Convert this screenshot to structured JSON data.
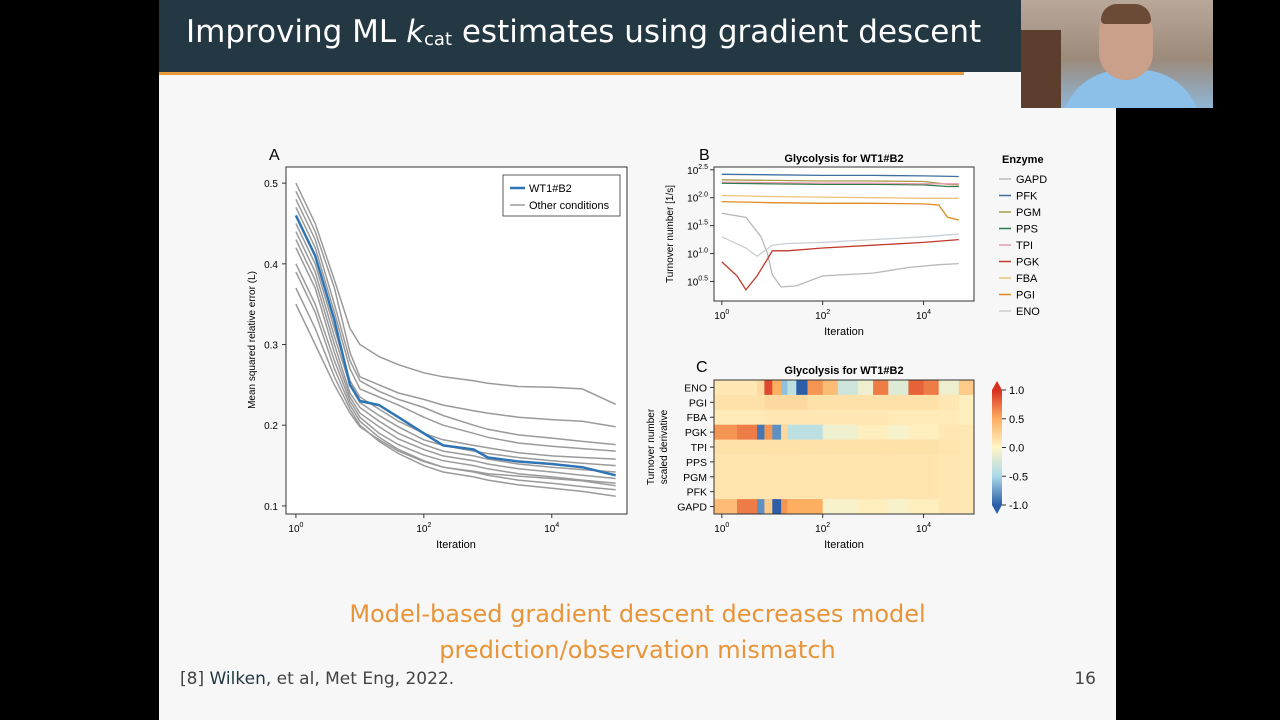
{
  "slide": {
    "title_pre": "Improving ML ",
    "title_k": "k",
    "title_sub": "cat",
    "title_post": " estimates using gradient descent",
    "tagline_line1": "Model-based gradient descent decreases model",
    "tagline_line2": "prediction/observation mismatch",
    "citation_ref": "[8] ",
    "citation_author": "Wilken",
    "citation_rest": ", et al, Met Eng, 2022.",
    "page_number": "16"
  },
  "panels": {
    "A": {
      "letter": "A",
      "xlabel": "Iteration",
      "ylabel": "Mean squared relative error (L)",
      "yticks": [
        "0.5",
        "0.4",
        "0.3",
        "0.2",
        "0.1"
      ],
      "xticks": [
        {
          "base": "10",
          "exp": "0"
        },
        {
          "base": "10",
          "exp": "2"
        },
        {
          "base": "10",
          "exp": "4"
        }
      ],
      "legend": [
        "WT1#B2",
        "Other conditions"
      ]
    },
    "B": {
      "letter": "B",
      "title": "Glycolysis for WT1#B2",
      "xlabel": "Iteration",
      "ylabel": "Turnover number [1/s]",
      "yticks": [
        {
          "base": "10",
          "exp": "2.5"
        },
        {
          "base": "10",
          "exp": "2.0"
        },
        {
          "base": "10",
          "exp": "1.5"
        },
        {
          "base": "10",
          "exp": "1.0"
        },
        {
          "base": "10",
          "exp": "0.5"
        }
      ],
      "xticks": [
        {
          "base": "10",
          "exp": "0"
        },
        {
          "base": "10",
          "exp": "2"
        },
        {
          "base": "10",
          "exp": "4"
        }
      ],
      "legend_title": "Enzyme",
      "legend": [
        "GAPD",
        "PFK",
        "PGM",
        "PPS",
        "TPI",
        "PGK",
        "FBA",
        "PGI",
        "ENO"
      ]
    },
    "C": {
      "letter": "C",
      "title": "Glycolysis for WT1#B2",
      "xlabel": "Iteration",
      "ylabel_line1": "Turnover number",
      "ylabel_line2": "scaled derivative",
      "rows": [
        "ENO",
        "PGI",
        "FBA",
        "PGK",
        "TPI",
        "PPS",
        "PGM",
        "PFK",
        "GAPD"
      ],
      "xticks": [
        {
          "base": "10",
          "exp": "0"
        },
        {
          "base": "10",
          "exp": "2"
        },
        {
          "base": "10",
          "exp": "4"
        }
      ],
      "colorbar_ticks": [
        "1.0",
        "0.5",
        "0.0",
        "-0.5",
        "-1.0"
      ]
    }
  },
  "chart_data": [
    {
      "type": "line",
      "panel": "A",
      "xscale": "log",
      "xlim": [
        0.7,
        150000
      ],
      "ylim": [
        0.09,
        0.52
      ],
      "xlabel": "Iteration",
      "ylabel": "Mean squared relative error (L)",
      "legend_position": "top-right",
      "colors": {
        "highlight": "#2f74b5",
        "other": "#9a9a9a"
      },
      "series": [
        {
          "name": "WT1#B2",
          "x": [
            1,
            2,
            4,
            7,
            10,
            20,
            40,
            100,
            200,
            600,
            1000,
            3000,
            10000,
            30000,
            100000
          ],
          "y": [
            0.46,
            0.41,
            0.33,
            0.25,
            0.23,
            0.225,
            0.21,
            0.19,
            0.175,
            0.17,
            0.16,
            0.155,
            0.152,
            0.148,
            0.138
          ]
        },
        {
          "name": "Other conditions",
          "x": [
            1,
            2,
            4,
            7,
            10,
            20,
            40,
            100,
            200,
            600,
            1000,
            3000,
            10000,
            30000,
            100000
          ],
          "y": [
            0.5,
            0.45,
            0.38,
            0.32,
            0.3,
            0.285,
            0.275,
            0.265,
            0.26,
            0.255,
            0.252,
            0.248,
            0.247,
            0.245,
            0.226
          ]
        },
        {
          "name": "Other conditions",
          "x": [
            1,
            2,
            4,
            7,
            10,
            20,
            40,
            100,
            200,
            600,
            1000,
            3000,
            10000,
            30000,
            100000
          ],
          "y": [
            0.49,
            0.44,
            0.37,
            0.29,
            0.26,
            0.25,
            0.24,
            0.232,
            0.225,
            0.218,
            0.215,
            0.21,
            0.207,
            0.205,
            0.198
          ]
        },
        {
          "name": "Other conditions",
          "x": [
            1,
            2,
            4,
            7,
            10,
            20,
            40,
            100,
            200,
            600,
            1000,
            3000,
            10000,
            30000,
            100000
          ],
          "y": [
            0.47,
            0.42,
            0.34,
            0.27,
            0.245,
            0.235,
            0.225,
            0.21,
            0.2,
            0.19,
            0.185,
            0.178,
            0.174,
            0.171,
            0.168
          ]
        },
        {
          "name": "Other conditions",
          "x": [
            1,
            2,
            4,
            7,
            10,
            20,
            40,
            100,
            200,
            600,
            1000,
            3000,
            10000,
            30000,
            100000
          ],
          "y": [
            0.45,
            0.4,
            0.32,
            0.255,
            0.235,
            0.22,
            0.205,
            0.19,
            0.182,
            0.175,
            0.172,
            0.166,
            0.162,
            0.16,
            0.158
          ]
        },
        {
          "name": "Other conditions",
          "x": [
            1,
            2,
            4,
            7,
            10,
            20,
            40,
            100,
            200,
            600,
            1000,
            3000,
            10000,
            30000,
            100000
          ],
          "y": [
            0.44,
            0.39,
            0.31,
            0.25,
            0.228,
            0.212,
            0.198,
            0.182,
            0.175,
            0.168,
            0.165,
            0.16,
            0.156,
            0.153,
            0.15
          ]
        },
        {
          "name": "Other conditions",
          "x": [
            1,
            2,
            4,
            7,
            10,
            20,
            40,
            100,
            200,
            600,
            1000,
            3000,
            10000,
            30000,
            100000
          ],
          "y": [
            0.43,
            0.38,
            0.3,
            0.24,
            0.222,
            0.205,
            0.19,
            0.176,
            0.168,
            0.162,
            0.158,
            0.152,
            0.148,
            0.145,
            0.142
          ]
        },
        {
          "name": "Other conditions",
          "x": [
            1,
            2,
            4,
            7,
            10,
            20,
            40,
            100,
            200,
            600,
            1000,
            3000,
            10000,
            30000,
            100000
          ],
          "y": [
            0.42,
            0.37,
            0.29,
            0.235,
            0.215,
            0.198,
            0.183,
            0.17,
            0.162,
            0.156,
            0.152,
            0.146,
            0.142,
            0.138,
            0.134
          ]
        },
        {
          "name": "Other conditions",
          "x": [
            1,
            2,
            4,
            7,
            10,
            20,
            40,
            100,
            200,
            600,
            1000,
            3000,
            10000,
            30000,
            100000
          ],
          "y": [
            0.4,
            0.35,
            0.28,
            0.23,
            0.21,
            0.19,
            0.176,
            0.163,
            0.156,
            0.15,
            0.146,
            0.14,
            0.136,
            0.132,
            0.128
          ]
        },
        {
          "name": "Other conditions",
          "x": [
            1,
            2,
            4,
            7,
            10,
            20,
            40,
            100,
            200,
            600,
            1000,
            3000,
            10000,
            30000,
            100000
          ],
          "y": [
            0.39,
            0.34,
            0.27,
            0.225,
            0.205,
            0.185,
            0.17,
            0.156,
            0.148,
            0.142,
            0.138,
            0.132,
            0.128,
            0.124,
            0.12
          ]
        },
        {
          "name": "Other conditions",
          "x": [
            1,
            2,
            4,
            7,
            10,
            20,
            40,
            100,
            200,
            600,
            1000,
            3000,
            10000,
            30000,
            100000
          ],
          "y": [
            0.37,
            0.32,
            0.26,
            0.22,
            0.2,
            0.18,
            0.165,
            0.15,
            0.142,
            0.136,
            0.132,
            0.126,
            0.122,
            0.118,
            0.112
          ]
        },
        {
          "name": "Other conditions",
          "x": [
            1,
            2,
            4,
            7,
            10,
            20,
            40,
            100,
            200,
            600,
            1000,
            3000,
            10000,
            30000,
            100000
          ],
          "y": [
            0.35,
            0.3,
            0.25,
            0.215,
            0.198,
            0.182,
            0.168,
            0.155,
            0.148,
            0.143,
            0.14,
            0.137,
            0.134,
            0.131,
            0.125
          ]
        },
        {
          "name": "Other conditions",
          "x": [
            1,
            2,
            4,
            7,
            10,
            20,
            40,
            100,
            200,
            600,
            1000,
            3000,
            10000,
            30000,
            100000
          ],
          "y": [
            0.48,
            0.43,
            0.35,
            0.28,
            0.255,
            0.242,
            0.232,
            0.222,
            0.212,
            0.2,
            0.195,
            0.188,
            0.184,
            0.18,
            0.176
          ]
        }
      ]
    },
    {
      "type": "line",
      "panel": "B",
      "title": "Glycolysis for WT1#B2",
      "xscale": "log",
      "yscale": "log",
      "xlim": [
        0.7,
        100000
      ],
      "ylim": [
        0.15,
        2.55
      ],
      "xlabel": "Iteration",
      "ylabel": "Turnover number [1/s]",
      "legend_position": "right",
      "series": [
        {
          "name": "GAPD",
          "color": "#b8b8b8",
          "x": [
            1,
            3,
            6,
            8,
            10,
            15,
            30,
            100,
            1000,
            5000,
            20000,
            50000
          ],
          "y": [
            1.72,
            1.65,
            1.3,
            1.0,
            0.62,
            0.4,
            0.42,
            0.6,
            0.65,
            0.75,
            0.8,
            0.82
          ]
        },
        {
          "name": "PFK",
          "color": "#3f6e9c",
          "x": [
            1,
            10,
            100,
            1000,
            10000,
            50000
          ],
          "y": [
            2.42,
            2.41,
            2.4,
            2.4,
            2.39,
            2.38
          ]
        },
        {
          "name": "PGM",
          "color": "#a89b4a",
          "x": [
            1,
            10,
            100,
            1000,
            10000,
            30000,
            50000
          ],
          "y": [
            2.32,
            2.31,
            2.3,
            2.3,
            2.29,
            2.24,
            2.23
          ]
        },
        {
          "name": "PPS",
          "color": "#2e7d4a",
          "x": [
            1,
            10,
            100,
            1000,
            10000,
            30000,
            50000
          ],
          "y": [
            2.26,
            2.25,
            2.24,
            2.24,
            2.23,
            2.2,
            2.2
          ]
        },
        {
          "name": "TPI",
          "color": "#e79ab0",
          "x": [
            1,
            10,
            100,
            1000,
            10000,
            50000
          ],
          "y": [
            2.28,
            2.27,
            2.26,
            2.26,
            2.25,
            2.25
          ]
        },
        {
          "name": "PGK",
          "color": "#c0392b",
          "x": [
            1,
            2,
            3,
            5,
            8,
            10,
            20,
            100,
            1000,
            10000,
            50000
          ],
          "y": [
            0.85,
            0.6,
            0.35,
            0.6,
            0.9,
            1.05,
            1.05,
            1.1,
            1.15,
            1.2,
            1.25
          ]
        },
        {
          "name": "FBA",
          "color": "#eac37a",
          "x": [
            1,
            10,
            100,
            1000,
            10000,
            50000
          ],
          "y": [
            2.04,
            2.02,
            2.01,
            2.0,
            1.99,
            1.99
          ]
        },
        {
          "name": "PGI",
          "color": "#e08a1e",
          "x": [
            1,
            10,
            100,
            1000,
            10000,
            20000,
            30000,
            50000
          ],
          "y": [
            1.93,
            1.91,
            1.9,
            1.9,
            1.89,
            1.87,
            1.65,
            1.6
          ]
        },
        {
          "name": "ENO",
          "color": "#c9ced4",
          "x": [
            1,
            3,
            5,
            10,
            20,
            100,
            1000,
            10000,
            50000
          ],
          "y": [
            1.3,
            1.1,
            0.95,
            1.15,
            1.18,
            1.2,
            1.25,
            1.3,
            1.35
          ]
        }
      ]
    },
    {
      "type": "heatmap",
      "panel": "C",
      "title": "Glycolysis for WT1#B2",
      "xscale": "log",
      "xlim": [
        0.7,
        100000
      ],
      "xlabel": "Iteration",
      "rows": [
        "ENO",
        "PGI",
        "FBA",
        "PGK",
        "TPI",
        "PPS",
        "PGM",
        "PFK",
        "GAPD"
      ],
      "colorbar_range": [
        -1.0,
        1.0
      ],
      "columns": [
        0.7,
        2,
        5,
        7,
        10,
        15,
        20,
        30,
        50,
        100,
        200,
        500,
        1000,
        2000,
        5000,
        10000,
        20000,
        50000,
        100000
      ],
      "values": [
        [
          0.1,
          0.1,
          0.2,
          0.9,
          0.5,
          -0.6,
          -0.4,
          -1.0,
          0.6,
          0.4,
          -0.3,
          -0.1,
          0.7,
          -0.2,
          0.8,
          0.7,
          -0.1,
          0.3
        ],
        [
          0.15,
          0.15,
          0.15,
          0.2,
          0.2,
          0.2,
          0.2,
          0.2,
          0.15,
          0.15,
          0.15,
          0.15,
          0.15,
          0.15,
          0.15,
          0.15,
          0.1,
          0.05
        ],
        [
          0.08,
          0.08,
          0.08,
          0.1,
          0.1,
          0.1,
          0.1,
          0.1,
          0.1,
          0.1,
          0.1,
          0.1,
          0.1,
          0.08,
          0.08,
          0.08,
          0.08,
          0.05
        ],
        [
          0.6,
          0.7,
          -0.9,
          0.6,
          -0.8,
          0.2,
          -0.4,
          -0.4,
          -0.4,
          -0.1,
          -0.1,
          0.05,
          0.05,
          -0.05,
          0.05,
          0.05,
          0.1,
          0.1
        ],
        [
          0.15,
          0.15,
          0.15,
          0.15,
          0.15,
          0.15,
          0.15,
          0.15,
          0.15,
          0.15,
          0.15,
          0.15,
          0.15,
          0.15,
          0.15,
          0.15,
          0.12,
          0.1
        ],
        [
          0.12,
          0.12,
          0.12,
          0.12,
          0.12,
          0.12,
          0.12,
          0.12,
          0.12,
          0.12,
          0.12,
          0.12,
          0.12,
          0.12,
          0.12,
          0.12,
          0.1,
          0.1
        ],
        [
          0.12,
          0.12,
          0.12,
          0.12,
          0.12,
          0.12,
          0.12,
          0.12,
          0.12,
          0.12,
          0.12,
          0.12,
          0.12,
          0.12,
          0.12,
          0.12,
          0.1,
          0.1
        ],
        [
          0.12,
          0.12,
          0.12,
          0.12,
          0.12,
          0.12,
          0.12,
          0.12,
          0.12,
          0.12,
          0.12,
          0.12,
          0.12,
          0.12,
          0.12,
          0.12,
          0.1,
          0.1
        ],
        [
          0.4,
          0.7,
          -0.8,
          0.3,
          -1.0,
          0.6,
          0.5,
          0.5,
          0.5,
          -0.05,
          -0.05,
          0.05,
          0.05,
          -0.05,
          0.05,
          0.05,
          0.1,
          0.1
        ]
      ]
    }
  ]
}
